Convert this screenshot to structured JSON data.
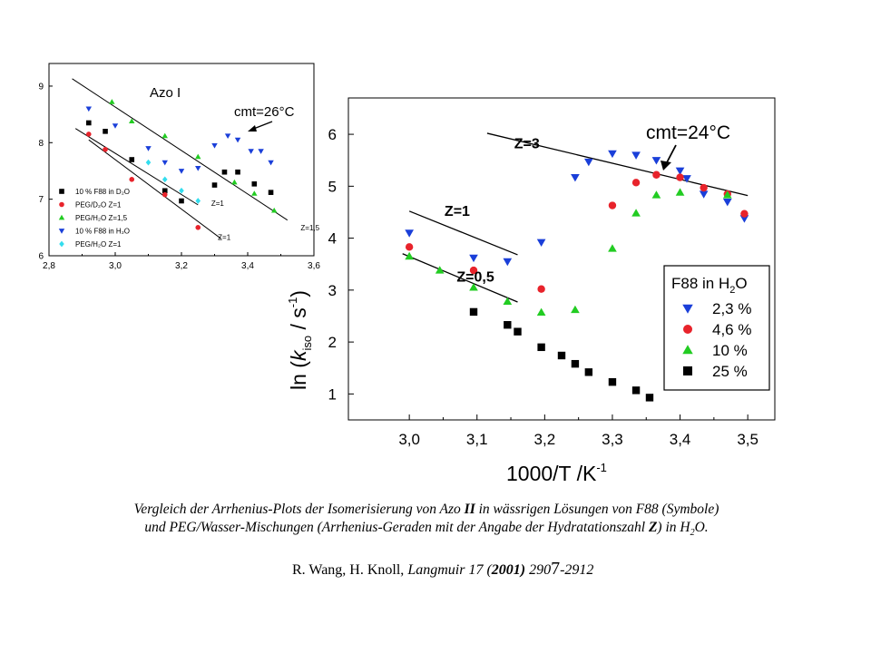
{
  "chart_data": [
    {
      "type": "scatter",
      "title": "Azo I",
      "xlim": [
        2.8,
        3.6
      ],
      "ylim": [
        6,
        9.4
      ],
      "xticks": [
        "2,8",
        "3,0",
        "3,2",
        "3,4",
        "3,6"
      ],
      "yticks": [
        "6",
        "7",
        "8",
        "9"
      ],
      "series": [
        {
          "name": "10 % F88 in D₂O",
          "symbol": "square",
          "color": "#000000",
          "x": [
            2.92,
            2.97,
            3.05,
            3.15,
            3.2,
            3.3,
            3.33,
            3.37,
            3.42,
            3.47
          ],
          "y": [
            8.35,
            8.2,
            7.7,
            7.15,
            6.97,
            7.25,
            7.48,
            7.48,
            7.27,
            7.12
          ]
        },
        {
          "name": "PEG/D₂O Z=1",
          "symbol": "circle",
          "color": "#e8232b",
          "x": [
            2.92,
            2.97,
            3.05,
            3.15,
            3.25
          ],
          "y": [
            8.15,
            7.88,
            7.35,
            7.08,
            6.5
          ]
        },
        {
          "name": "PEG/H₂O Z=1,5",
          "symbol": "triangle-up",
          "color": "#22cc22",
          "x": [
            2.99,
            3.05,
            3.15,
            3.25,
            3.36,
            3.42,
            3.48
          ],
          "y": [
            8.72,
            8.38,
            8.12,
            7.75,
            7.3,
            7.1,
            6.8
          ]
        },
        {
          "name": "10 % F88 in H₂O",
          "symbol": "triangle-down",
          "color": "#1a3fd9",
          "x": [
            2.92,
            3.0,
            3.1,
            3.15,
            3.2,
            3.25,
            3.3,
            3.34,
            3.37,
            3.41,
            3.44,
            3.47
          ],
          "y": [
            8.6,
            8.3,
            7.9,
            7.65,
            7.5,
            7.55,
            7.95,
            8.12,
            8.05,
            7.85,
            7.85,
            7.65
          ]
        },
        {
          "name": "PEG/H₂O Z=1",
          "symbol": "diamond",
          "color": "#33ddee",
          "x": [
            3.1,
            3.15,
            3.2,
            3.25
          ],
          "y": [
            7.65,
            7.35,
            7.15,
            6.97
          ]
        }
      ],
      "fit_lines": [
        {
          "x": [
            2.87,
            3.52
          ],
          "y": [
            9.13,
            6.63
          ],
          "label": "Z=1,5",
          "label_x": 3.56,
          "label_y": 6.45
        },
        {
          "x": [
            2.88,
            3.25
          ],
          "y": [
            8.25,
            6.9
          ],
          "label": "Z=1",
          "label_x": 3.29,
          "label_y": 6.88
        },
        {
          "x": [
            2.92,
            3.32
          ],
          "y": [
            8.05,
            6.3
          ],
          "label": "Z=1",
          "label_x": 3.31,
          "label_y": 6.28
        }
      ],
      "annotation": {
        "text": "cmt=26°C",
        "arrow_to": [
          3.3,
          7.9
        ]
      }
    },
    {
      "type": "scatter",
      "xlabel_main": "1000/T /K",
      "xlabel_sup": "-1",
      "ylabel_pre": "ln (",
      "ylabel_k": "k",
      "ylabel_sub": "iso",
      "ylabel_mid": " / s",
      "ylabel_sup": "-1",
      "ylabel_post": ")",
      "xlim": [
        2.91,
        3.54
      ],
      "ylim": [
        0.5,
        6.7
      ],
      "xticks": [
        "3,0",
        "3,1",
        "3,2",
        "3,3",
        "3,4",
        "3,5"
      ],
      "yticks": [
        "1",
        "2",
        "3",
        "4",
        "5",
        "6"
      ],
      "legend_title": "F88 in H",
      "legend_title_sub": "2",
      "legend_title_tail": "O",
      "legend_position": "right",
      "series": [
        {
          "name": "2,3 %",
          "symbol": "triangle-down",
          "color": "#1a3fd9",
          "x": [
            3.0,
            3.095,
            3.145,
            3.195,
            3.245,
            3.265,
            3.3,
            3.335,
            3.365,
            3.4,
            3.41,
            3.435,
            3.47,
            3.495
          ],
          "y": [
            4.1,
            3.62,
            3.55,
            3.92,
            5.17,
            5.47,
            5.63,
            5.6,
            5.5,
            5.3,
            5.15,
            4.85,
            4.7,
            4.38
          ]
        },
        {
          "name": "4,6 %",
          "symbol": "circle",
          "color": "#e8232b",
          "x": [
            3.0,
            3.095,
            3.195,
            3.3,
            3.335,
            3.365,
            3.4,
            3.435,
            3.47,
            3.495
          ],
          "y": [
            3.83,
            3.38,
            3.02,
            4.63,
            5.07,
            5.22,
            5.17,
            4.97,
            4.85,
            4.47
          ]
        },
        {
          "name": "10 %",
          "symbol": "triangle-up",
          "color": "#22cc22",
          "x": [
            3.0,
            3.045,
            3.095,
            3.145,
            3.195,
            3.245,
            3.3,
            3.335,
            3.365,
            3.4,
            3.47
          ],
          "y": [
            3.65,
            3.38,
            3.05,
            2.78,
            2.57,
            2.62,
            3.8,
            4.48,
            4.83,
            4.88,
            4.83
          ]
        },
        {
          "name": "25 %",
          "symbol": "square",
          "color": "#000000",
          "x": [
            3.095,
            3.145,
            3.16,
            3.195,
            3.225,
            3.245,
            3.265,
            3.3,
            3.335,
            3.355
          ],
          "y": [
            2.58,
            2.33,
            2.2,
            1.9,
            1.74,
            1.58,
            1.42,
            1.23,
            1.07,
            0.93
          ]
        }
      ],
      "fit_lines": [
        {
          "x": [
            3.0,
            3.16
          ],
          "y": [
            4.52,
            3.68
          ],
          "label": "Z=1",
          "label_x": 3.052,
          "label_y": 4.43
        },
        {
          "x": [
            2.99,
            3.16
          ],
          "y": [
            3.7,
            2.77
          ],
          "label": "Z=0,5",
          "label_x": 3.07,
          "label_y": 3.16
        },
        {
          "x": [
            3.115,
            3.5
          ],
          "y": [
            6.02,
            4.82
          ],
          "label": "Z=3",
          "label_x": 3.155,
          "label_y": 5.73
        }
      ],
      "annotation": {
        "text": "cmt=24°C",
        "arrow_to": [
          3.4,
          5.3
        ]
      }
    }
  ],
  "caption": {
    "line1_a": "Vergleich der Arrhenius-Plots der Isomerisierung von Azo ",
    "line1_b": "II",
    "line1_c": " in wässrigen Lösungen von F88 (Symbole)",
    "line2_a": "und PEG/Wasser-Mischungen (Arrhenius-Geraden mit der Angabe der Hydratationszahl ",
    "line2_b": "Z",
    "line2_c": ") in H",
    "line2_sub": "2",
    "line2_d": "O."
  },
  "reference": {
    "authors": "R. Wang, H. Knoll, ",
    "journal": "Langmuir 17 (",
    "year": "2001)",
    "pages_a": " 290",
    "pages_b": "7",
    "pages_c": "-2912"
  }
}
